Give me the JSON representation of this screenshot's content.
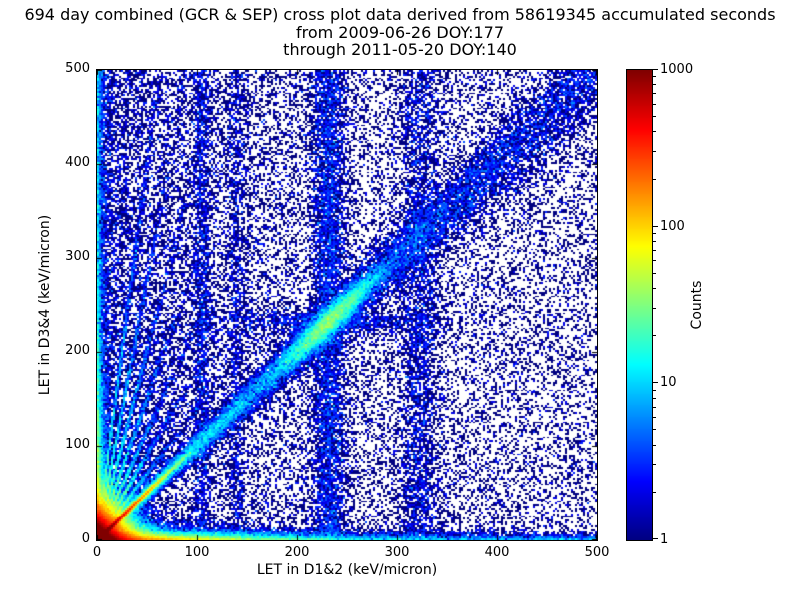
{
  "figure": {
    "title_line1": "694 day combined (GCR & SEP) cross plot data derived from 58619345 accumulated seconds",
    "title_line2": "from 2009-06-26 DOY:177",
    "title_line3": "through 2011-05-20 DOY:140",
    "background": "#ffffff"
  },
  "chart_data": {
    "type": "heatmap",
    "subtype": "2d-histogram-scatter",
    "title": "694 day combined (GCR & SEP) cross plot data derived from 58619345 accumulated seconds",
    "subtitle_from": "from 2009-06-26 DOY:177",
    "subtitle_through": "through 2011-05-20 DOY:140",
    "days": 694,
    "accumulated_seconds": 58619345,
    "xlabel": "LET in D1&2 (keV/micron)",
    "ylabel": "LET in D3&4 (keV/micron)",
    "xlim": [
      0,
      500
    ],
    "ylim": [
      0,
      500
    ],
    "xticks": [
      0,
      100,
      200,
      300,
      400,
      500
    ],
    "yticks": [
      0,
      100,
      200,
      300,
      400,
      500
    ],
    "grid": false,
    "colorbar": {
      "label": "Counts",
      "scale": "log10",
      "min": 1,
      "max": 1000,
      "ticks": [
        1000,
        100,
        10,
        1
      ],
      "minor_ticks": [
        2,
        3,
        4,
        5,
        6,
        7,
        8,
        9,
        20,
        30,
        40,
        50,
        60,
        70,
        80,
        90,
        200,
        300,
        400,
        500,
        600,
        700,
        800,
        900
      ],
      "colormap": "jet",
      "low_color": "#000080",
      "high_color": "#800000"
    },
    "density_features": {
      "seed": 42,
      "origin_cluster": {
        "n": 130000,
        "scale": 10
      },
      "bright_diagonal": {
        "n": 30000,
        "x_scale": 19,
        "x_max": 95,
        "spread": 1.3
      },
      "main_diagonal": {
        "n": 22000,
        "pow": 1.6,
        "spread_base": 2.0,
        "spread_slope": 0.05
      },
      "diagonal_hotspot": {
        "n": 9000,
        "center": 232,
        "along_sigma": 26,
        "perp_sigma": 8
      },
      "rays": {
        "slopes": [
          1.4,
          1.8,
          2.3,
          3.0,
          4.0,
          5.5,
          8.0
        ],
        "n_each": 2200,
        "x_scale": 24
      },
      "vertical_bands": [
        {
          "x": 232,
          "sigma": 9,
          "n": 6000
        },
        {
          "x": 322,
          "sigma": 11,
          "n": 3500
        },
        {
          "x": 105,
          "sigma": 5,
          "n": 1800
        },
        {
          "x": 140,
          "sigma": 5,
          "n": 1200
        }
      ],
      "horizontal_band": {
        "y": 232,
        "y_sigma": 8,
        "center_x": 232,
        "x_sigma": 60,
        "n": 1400
      },
      "bottom_band": {
        "n": 20000,
        "x_scale": 70,
        "y_scale": 3.5
      },
      "bottom_edge": {
        "n": 3500,
        "y_scale": 3.0
      },
      "left_band": {
        "n": 7000,
        "x_scale": 3.5,
        "y_scale": 90
      },
      "left_edge": {
        "n": 2500,
        "x_scale": 3.0
      },
      "background_left_biased": {
        "n": 26000,
        "x_pow": 1.7
      },
      "background_uniform": {
        "n": 7000
      }
    }
  }
}
